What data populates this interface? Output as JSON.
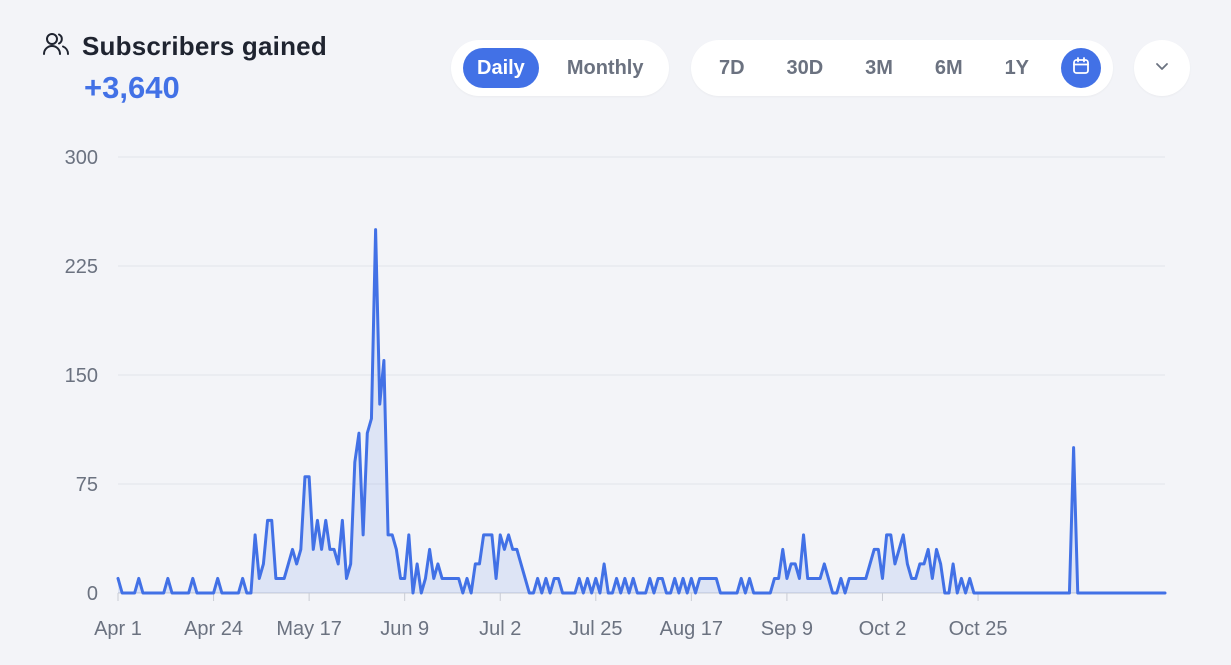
{
  "header": {
    "title": "Subscribers gained",
    "total": "+3,640",
    "icon": "users-icon"
  },
  "view_toggle": {
    "options": [
      "Daily",
      "Monthly"
    ],
    "selected": "Daily"
  },
  "range_toggle": {
    "options": [
      "7D",
      "30D",
      "3M",
      "6M",
      "1Y"
    ],
    "custom_icon": "calendar-icon",
    "selected": "custom"
  },
  "menu": {
    "icon": "chevron-down-icon"
  },
  "colors": {
    "accent": "#4271e6",
    "grid": "#e2e4ea",
    "text": "#1f2430",
    "muted": "#6b7280",
    "bg": "#f3f4f8"
  },
  "chart_data": {
    "type": "area",
    "title": "Subscribers gained",
    "xlabel": "",
    "ylabel": "",
    "ylim": [
      0,
      300
    ],
    "yticks": [
      0,
      75,
      150,
      225,
      300
    ],
    "xticks": [
      "Apr 1",
      "Apr 24",
      "May 17",
      "Jun 9",
      "Jul 2",
      "Jul 25",
      "Aug 17",
      "Sep 9",
      "Oct 2",
      "Oct 25"
    ],
    "x_start": "Apr 1",
    "grid": true,
    "legend": "none",
    "series": [
      {
        "values": [
          10,
          0,
          0,
          0,
          0,
          10,
          0,
          0,
          0,
          0,
          0,
          0,
          10,
          0,
          0,
          0,
          0,
          0,
          10,
          0,
          0,
          0,
          0,
          0,
          10,
          0,
          0,
          0,
          0,
          0,
          10,
          0,
          0,
          40,
          10,
          20,
          50,
          50,
          10,
          10,
          10,
          20,
          30,
          20,
          30,
          80,
          80,
          30,
          50,
          30,
          50,
          30,
          30,
          20,
          50,
          10,
          20,
          90,
          110,
          40,
          110,
          120,
          250,
          130,
          160,
          40,
          40,
          30,
          10,
          10,
          40,
          0,
          20,
          0,
          10,
          30,
          10,
          20,
          10,
          10,
          10,
          10,
          10,
          0,
          10,
          0,
          20,
          20,
          40,
          40,
          40,
          10,
          40,
          30,
          40,
          30,
          30,
          20,
          10,
          0,
          0,
          10,
          0,
          10,
          0,
          10,
          10,
          0,
          0,
          0,
          0,
          10,
          0,
          10,
          0,
          10,
          0,
          20,
          0,
          0,
          10,
          0,
          10,
          0,
          10,
          0,
          0,
          0,
          10,
          0,
          10,
          10,
          0,
          0,
          10,
          0,
          10,
          0,
          10,
          0,
          10,
          10,
          10,
          10,
          10,
          0,
          0,
          0,
          0,
          0,
          10,
          0,
          10,
          0,
          0,
          0,
          0,
          0,
          10,
          10,
          30,
          10,
          20,
          20,
          10,
          40,
          10,
          10,
          10,
          10,
          20,
          10,
          0,
          0,
          10,
          0,
          10,
          10,
          10,
          10,
          10,
          20,
          30,
          30,
          10,
          40,
          40,
          20,
          30,
          40,
          20,
          10,
          10,
          20,
          20,
          30,
          10,
          30,
          20,
          0,
          0,
          20,
          0,
          10,
          0,
          10,
          0,
          0,
          0,
          0,
          0,
          0,
          0,
          0,
          0,
          0,
          0,
          0,
          0,
          0,
          0,
          0,
          0,
          0,
          0,
          0,
          0,
          0,
          0,
          0,
          100,
          0,
          0,
          0,
          0,
          0,
          0,
          0,
          0,
          0,
          0,
          0,
          0,
          0,
          0,
          0,
          0,
          0,
          0,
          0,
          0,
          0,
          0
        ]
      }
    ]
  }
}
